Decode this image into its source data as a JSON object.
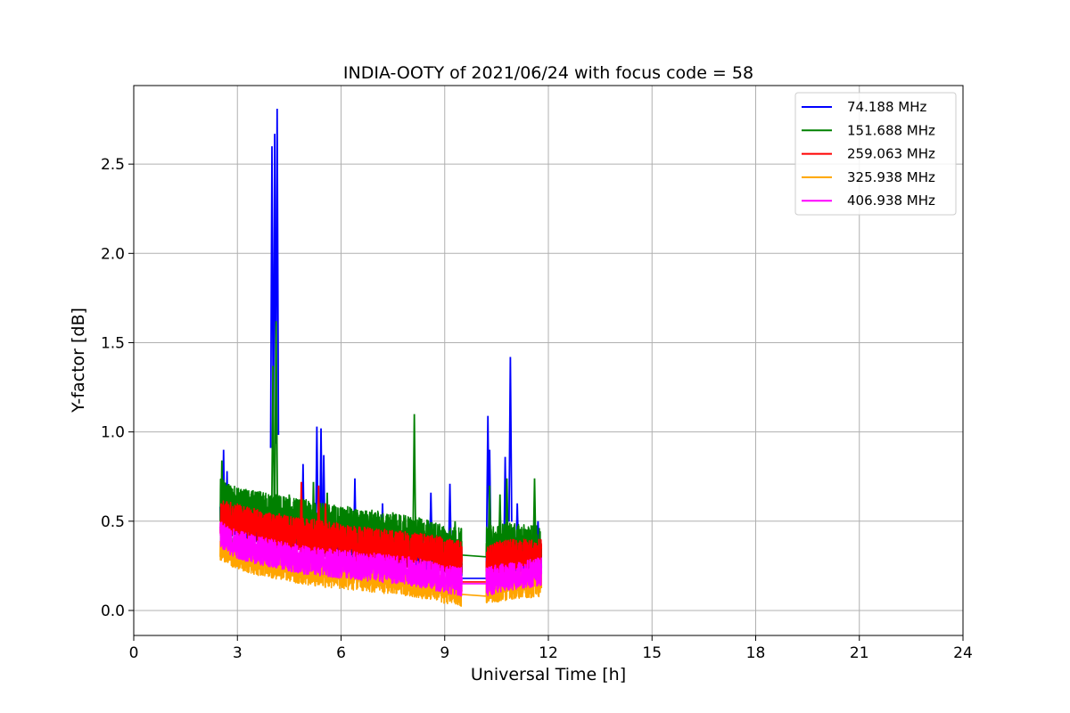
{
  "chart_data": {
    "type": "line",
    "title": "INDIA-OOTY of 2021/06/24 with focus code = 58",
    "xlabel": "Universal Time [h]",
    "ylabel": "Y-factor [dB]",
    "xlim": [
      0,
      24
    ],
    "ylim": [
      -0.14,
      2.94
    ],
    "xticks": [
      0,
      3,
      6,
      9,
      12,
      15,
      18,
      21,
      24
    ],
    "xtick_labels": [
      "0",
      "3",
      "6",
      "9",
      "12",
      "15",
      "18",
      "21",
      "24"
    ],
    "yticks": [
      0.0,
      0.5,
      1.0,
      1.5,
      2.0,
      2.5
    ],
    "ytick_labels": [
      "0.0",
      "0.5",
      "1.0",
      "1.5",
      "2.0",
      "2.5"
    ],
    "grid": true,
    "legend_position": "top-right",
    "series": [
      {
        "name": " 74.188 MHz",
        "color": "#0000ff",
        "segments": [
          {
            "x": [
              2.5,
              3.0,
              3.5,
              4.0,
              4.1,
              4.2,
              4.5,
              5.0,
              5.3,
              5.6,
              6.0,
              6.4,
              7.0,
              7.5,
              8.0,
              8.5,
              9.1,
              9.5
            ],
            "y": [
              0.55,
              0.5,
              0.47,
              0.46,
              0.46,
              0.45,
              0.43,
              0.42,
              0.41,
              0.4,
              0.38,
              0.37,
              0.35,
              0.34,
              0.33,
              0.32,
              0.3,
              0.29
            ]
          },
          {
            "x": [
              9.5,
              10.2
            ],
            "y": [
              0.18,
              0.18
            ]
          },
          {
            "x": [
              10.2,
              10.6,
              10.9,
              11.2,
              11.5,
              11.8
            ],
            "y": [
              0.28,
              0.29,
              0.3,
              0.3,
              0.3,
              0.3
            ]
          }
        ],
        "peaks": [
          [
            2.6,
            0.9
          ],
          [
            2.7,
            0.78
          ],
          [
            4.0,
            2.6
          ],
          [
            4.08,
            2.67
          ],
          [
            4.15,
            2.81
          ],
          [
            4.9,
            0.82
          ],
          [
            5.3,
            1.03
          ],
          [
            5.42,
            1.02
          ],
          [
            5.5,
            0.87
          ],
          [
            6.4,
            0.74
          ],
          [
            7.2,
            0.6
          ],
          [
            8.6,
            0.66
          ],
          [
            9.15,
            0.71
          ],
          [
            10.25,
            1.09
          ],
          [
            10.3,
            0.9
          ],
          [
            10.75,
            0.86
          ],
          [
            10.9,
            1.42
          ],
          [
            11.1,
            0.6
          ],
          [
            11.7,
            0.5
          ]
        ],
        "noise": 0.1
      },
      {
        "name": "151.688 MHz",
        "color": "#008000",
        "segments": [
          {
            "x": [
              2.5,
              3.0,
              3.5,
              4.0,
              4.2,
              4.5,
              5.0,
              5.5,
              6.0,
              6.5,
              7.0,
              7.5,
              8.0,
              8.5,
              9.0,
              9.5
            ],
            "y": [
              0.62,
              0.57,
              0.55,
              0.54,
              0.53,
              0.52,
              0.5,
              0.48,
              0.47,
              0.45,
              0.44,
              0.42,
              0.41,
              0.39,
              0.36,
              0.34
            ]
          },
          {
            "x": [
              9.5,
              10.2
            ],
            "y": [
              0.31,
              0.3
            ]
          },
          {
            "x": [
              10.2,
              10.6,
              10.9,
              11.2,
              11.5,
              11.8
            ],
            "y": [
              0.35,
              0.37,
              0.37,
              0.36,
              0.36,
              0.35
            ]
          }
        ],
        "peaks": [
          [
            2.55,
            0.84
          ],
          [
            2.8,
            0.7
          ],
          [
            3.2,
            0.66
          ],
          [
            4.03,
            1.37
          ],
          [
            4.12,
            1.62
          ],
          [
            4.5,
            0.65
          ],
          [
            5.2,
            0.72
          ],
          [
            5.6,
            0.66
          ],
          [
            6.3,
            0.57
          ],
          [
            7.5,
            0.55
          ],
          [
            8.12,
            1.1
          ],
          [
            9.3,
            0.5
          ],
          [
            10.3,
            0.7
          ],
          [
            10.6,
            0.65
          ],
          [
            10.8,
            0.74
          ],
          [
            11.6,
            0.74
          ]
        ],
        "noise": 0.12
      },
      {
        "name": "259.063 MHz",
        "color": "#ff0000",
        "segments": [
          {
            "x": [
              2.5,
              3.0,
              3.5,
              4.0,
              4.5,
              5.0,
              5.5,
              6.0,
              6.5,
              7.0,
              7.5,
              8.0,
              8.5,
              9.0,
              9.5
            ],
            "y": [
              0.53,
              0.5,
              0.47,
              0.45,
              0.43,
              0.42,
              0.4,
              0.39,
              0.37,
              0.36,
              0.35,
              0.34,
              0.33,
              0.31,
              0.29
            ]
          },
          {
            "x": [
              9.5,
              10.2
            ],
            "y": [
              0.16,
              0.16
            ]
          },
          {
            "x": [
              10.2,
              10.6,
              10.9,
              11.2,
              11.5,
              11.8
            ],
            "y": [
              0.27,
              0.29,
              0.3,
              0.3,
              0.3,
              0.3
            ]
          }
        ],
        "peaks": [
          [
            4.85,
            0.72
          ],
          [
            5.35,
            0.7
          ],
          [
            5.55,
            0.6
          ]
        ],
        "noise": 0.1
      },
      {
        "name": "325.938 MHz",
        "color": "#ffa500",
        "segments": [
          {
            "x": [
              2.5,
              3.0,
              3.5,
              4.0,
              4.5,
              5.0,
              5.5,
              6.0,
              6.5,
              7.0,
              7.5,
              8.0,
              8.5,
              9.0,
              9.5
            ],
            "y": [
              0.36,
              0.31,
              0.28,
              0.26,
              0.24,
              0.22,
              0.21,
              0.2,
              0.19,
              0.18,
              0.17,
              0.16,
              0.14,
              0.12,
              0.1
            ]
          },
          {
            "x": [
              9.5,
              10.2
            ],
            "y": [
              0.09,
              0.08
            ]
          },
          {
            "x": [
              10.2,
              10.6,
              10.9,
              11.2,
              11.5,
              11.8
            ],
            "y": [
              0.12,
              0.13,
              0.14,
              0.15,
              0.15,
              0.16
            ]
          }
        ],
        "peaks": [],
        "noise": 0.08
      },
      {
        "name": "406.938 MHz",
        "color": "#ff00ff",
        "segments": [
          {
            "x": [
              2.5,
              3.0,
              3.5,
              4.0,
              4.5,
              5.0,
              5.5,
              6.0,
              6.5,
              7.0,
              7.5,
              8.0,
              8.5,
              9.0,
              9.5
            ],
            "y": [
              0.42,
              0.37,
              0.34,
              0.32,
              0.3,
              0.28,
              0.27,
              0.26,
              0.25,
              0.24,
              0.23,
              0.22,
              0.2,
              0.18,
              0.16
            ]
          },
          {
            "x": [
              9.5,
              10.2
            ],
            "y": [
              0.15,
              0.15
            ]
          },
          {
            "x": [
              10.2,
              10.6,
              10.9,
              11.2,
              11.5,
              11.8
            ],
            "y": [
              0.16,
              0.18,
              0.19,
              0.2,
              0.21,
              0.22
            ]
          }
        ],
        "peaks": [],
        "noise": 0.08
      }
    ]
  }
}
